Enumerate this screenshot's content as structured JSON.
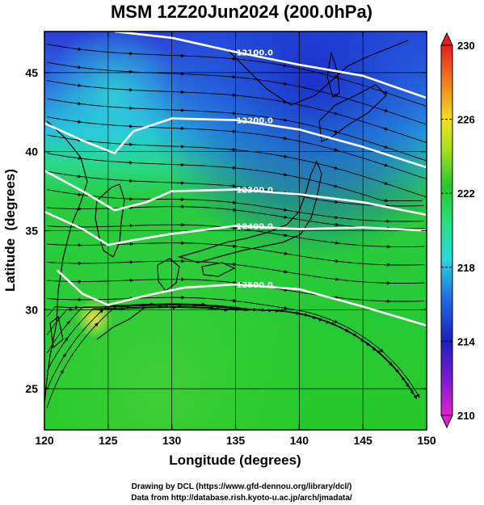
{
  "title": "MSM 12Z20Jun2024 (200.0hPa)",
  "chart_data": {
    "type": "heatmap",
    "title": "MSM 12Z20Jun2024 (200.0hPa)",
    "xlabel": "Longitude (degrees)",
    "ylabel": "Latitude  (degrees)",
    "xlim": [
      120,
      150
    ],
    "ylim": [
      22.4,
      47.6
    ],
    "x_ticks": [
      "120",
      "125",
      "130",
      "135",
      "140",
      "145",
      "150"
    ],
    "y_ticks": [
      "25",
      "30",
      "35",
      "40",
      "45"
    ],
    "colorbar": {
      "min": 210,
      "max": 230,
      "ticks": [
        "230",
        "226",
        "222",
        "218",
        "214",
        "210"
      ]
    },
    "grid": true,
    "contours": [
      {
        "label": "12100.0",
        "points": [
          [
            125.5,
            47.6
          ],
          [
            130,
            47.2
          ],
          [
            135,
            46.3
          ],
          [
            140,
            45.5
          ],
          [
            145,
            44.8
          ],
          [
            150,
            43.4
          ]
        ]
      },
      {
        "label": "12200.0",
        "points": [
          [
            120,
            41.8
          ],
          [
            123,
            40.7
          ],
          [
            125.5,
            39.9
          ],
          [
            127,
            41.3
          ],
          [
            130,
            42.1
          ],
          [
            135,
            42.0
          ],
          [
            140,
            41.4
          ],
          [
            145,
            40.3
          ],
          [
            150,
            39.0
          ]
        ]
      },
      {
        "label": "12300.0",
        "points": [
          [
            120,
            38.8
          ],
          [
            123,
            37.5
          ],
          [
            125.5,
            36.3
          ],
          [
            128,
            36.8
          ],
          [
            130,
            37.5
          ],
          [
            135,
            37.6
          ],
          [
            140,
            37.3
          ],
          [
            145,
            36.8
          ],
          [
            150,
            36.0
          ]
        ]
      },
      {
        "label": "12400.0",
        "points": [
          [
            120,
            36.2
          ],
          [
            123,
            35.1
          ],
          [
            125,
            34.1
          ],
          [
            127,
            34.4
          ],
          [
            130,
            34.8
          ],
          [
            135,
            35.3
          ],
          [
            140,
            35.1
          ],
          [
            145,
            35.2
          ],
          [
            150,
            35.0
          ]
        ]
      },
      {
        "label": "12500.0",
        "points": [
          [
            121,
            32.5
          ],
          [
            123,
            31.0
          ],
          [
            125,
            30.3
          ],
          [
            128,
            30.9
          ],
          [
            131,
            31.4
          ],
          [
            135,
            31.6
          ],
          [
            140,
            31.3
          ],
          [
            145,
            30.2
          ],
          [
            150,
            29.0
          ]
        ]
      }
    ]
  },
  "credits": {
    "line1": "Drawing by DCL (https://www.gfd-dennou.org/library/dcl/)",
    "line2": "Data from http://database.rish.kyoto-u.ac.jp/arch/jmadata/"
  },
  "colors": {
    "background_low": "#23c928",
    "background_mid": "#28e0d0",
    "background_high": "#1530d8",
    "warm_spot": "#e8e040",
    "streamline": "#000000",
    "contour": "#ffffff"
  }
}
